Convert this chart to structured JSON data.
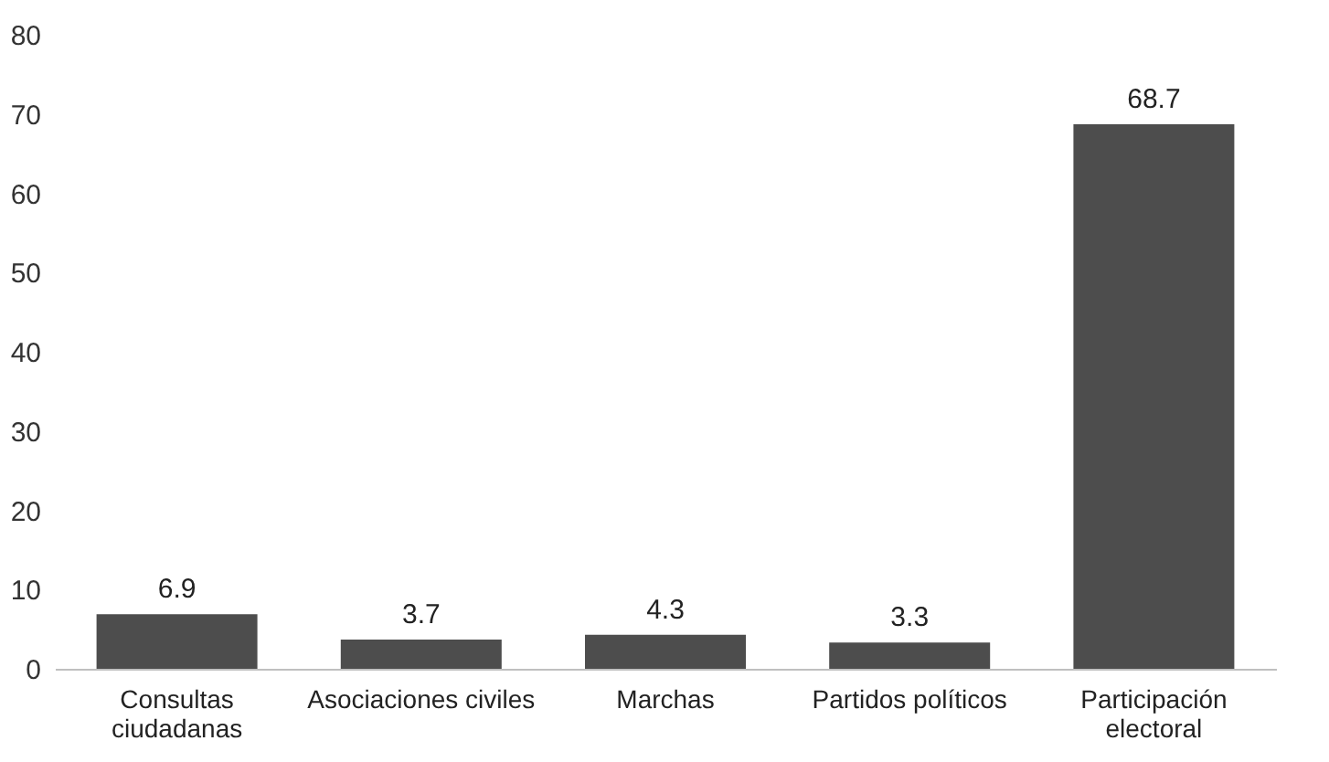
{
  "chart_data": {
    "type": "bar",
    "categories": [
      "Consultas\nciudadanas",
      "Asociaciones civiles",
      "Marchas",
      "Partidos políticos",
      "Participación\nelectoral"
    ],
    "values": [
      6.9,
      3.7,
      4.3,
      3.3,
      68.7
    ],
    "color": "#4d4d4d",
    "ylim": [
      0,
      80
    ],
    "yticks": [
      0,
      10,
      20,
      30,
      40,
      50,
      60,
      70,
      80
    ],
    "data_labels": true,
    "grid": false
  }
}
